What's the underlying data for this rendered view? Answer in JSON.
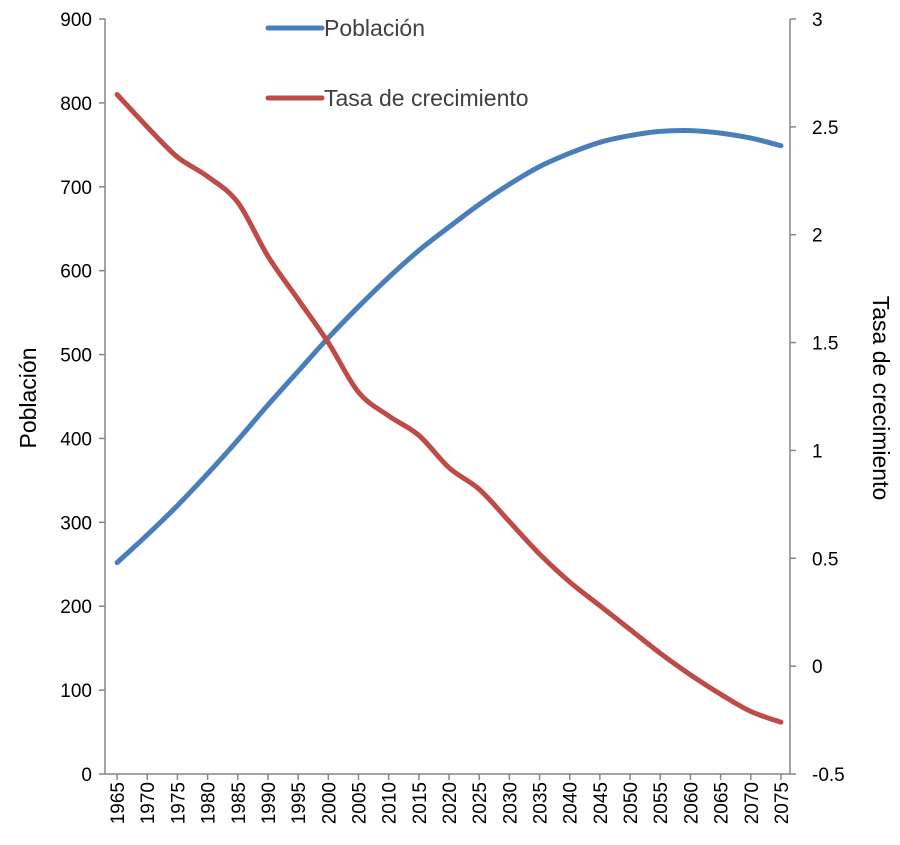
{
  "chart_data": {
    "type": "line",
    "x_categories": [
      "1965",
      "1970",
      "1975",
      "1980",
      "1985",
      "1990",
      "1995",
      "2000",
      "2005",
      "2010",
      "2015",
      "2020",
      "2025",
      "2030",
      "2035",
      "2040",
      "2045",
      "2050",
      "2055",
      "2060",
      "2065",
      "2070",
      "2075"
    ],
    "y_left": {
      "label": "Población",
      "ticks": [
        "0",
        "100",
        "200",
        "300",
        "400",
        "500",
        "600",
        "700",
        "800",
        "900"
      ],
      "range": [
        0,
        900
      ]
    },
    "y_right": {
      "label": "Tasa de crecimiento",
      "ticks": [
        "-0.5",
        "0",
        "0.5",
        "1",
        "1.5",
        "2",
        "2.5",
        "3"
      ],
      "range": [
        -0.5,
        3
      ]
    },
    "grid": false,
    "legend_position": "top-center",
    "series": [
      {
        "name": "Población",
        "axis": "left",
        "color": "#4A7EBB",
        "x": [
          1965,
          1970,
          1975,
          1980,
          1985,
          1990,
          1995,
          2000,
          2005,
          2010,
          2015,
          2020,
          2025,
          2030,
          2035,
          2040,
          2045,
          2050,
          2055,
          2060,
          2065,
          2070,
          2075
        ],
        "values": [
          252,
          285,
          320,
          358,
          398,
          440,
          480,
          520,
          557,
          592,
          624,
          652,
          679,
          703,
          724,
          740,
          753,
          761,
          766,
          767,
          764,
          758,
          749
        ]
      },
      {
        "name": "Tasa de crecimiento",
        "axis": "right",
        "color": "#BE4B48",
        "x": [
          1965,
          1970,
          1975,
          1980,
          1985,
          1990,
          1995,
          2000,
          2005,
          2010,
          2015,
          2020,
          2025,
          2030,
          2035,
          2040,
          2045,
          2050,
          2055,
          2060,
          2065,
          2070,
          2075
        ],
        "values": [
          2.65,
          2.5,
          2.36,
          2.27,
          2.15,
          1.9,
          1.7,
          1.5,
          1.27,
          1.16,
          1.07,
          0.92,
          0.82,
          0.67,
          0.52,
          0.39,
          0.28,
          0.17,
          0.06,
          -0.04,
          -0.13,
          -0.21,
          -0.26
        ]
      }
    ]
  }
}
